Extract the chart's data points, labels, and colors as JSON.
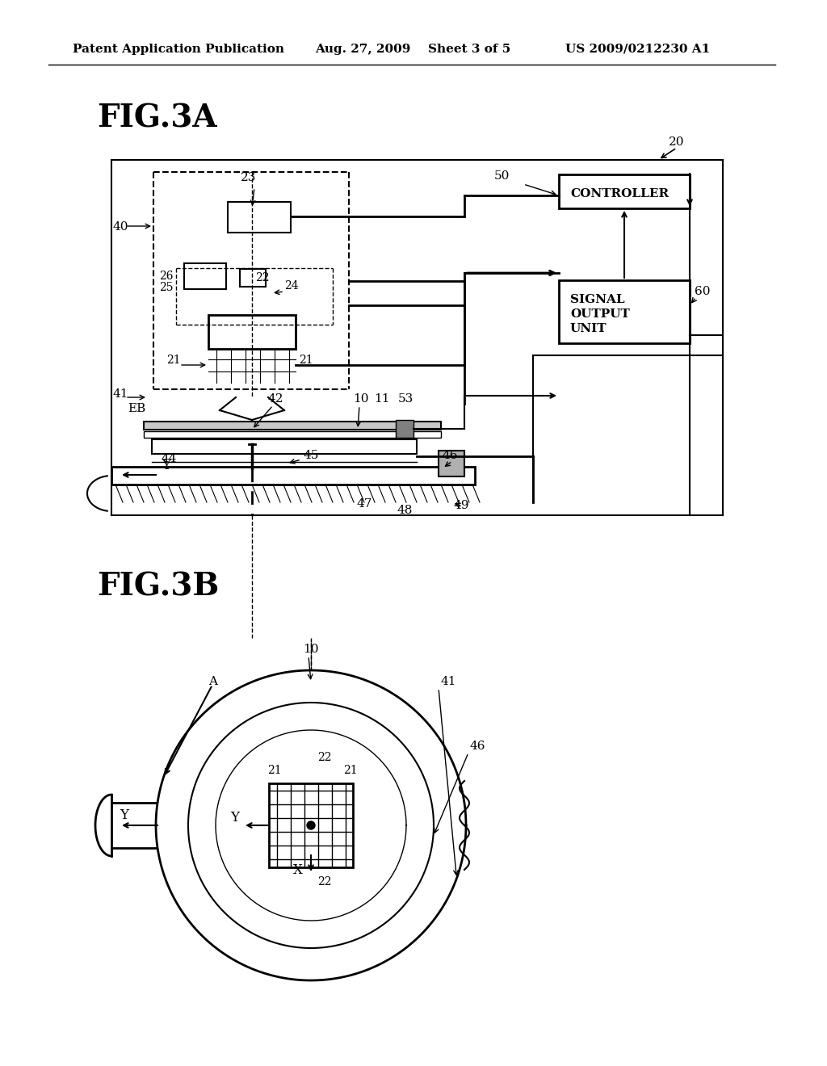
{
  "bg_color": "#ffffff",
  "header_text": "Patent Application Publication",
  "header_date": "Aug. 27, 2009",
  "header_sheet": "Sheet 3 of 5",
  "header_patent": "US 2009/0212230 A1",
  "fig3a_label": "FIG.3A",
  "fig3b_label": "FIG.3B",
  "text_color": "#000000"
}
